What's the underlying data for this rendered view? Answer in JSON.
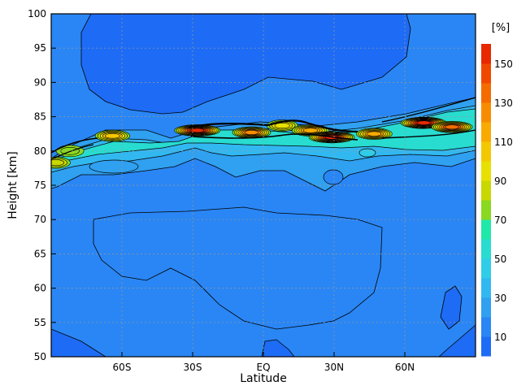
{
  "chart_data": {
    "type": "heatmap",
    "xlabel": "Latitude",
    "ylabel": "Height [km]",
    "xlim": [
      -90,
      90
    ],
    "ylim": [
      50,
      100
    ],
    "x_ticks": [
      {
        "value": -60,
        "label": "60S"
      },
      {
        "value": -30,
        "label": "30S"
      },
      {
        "value": 0,
        "label": "EQ"
      },
      {
        "value": 30,
        "label": "30N"
      },
      {
        "value": 60,
        "label": "60N"
      }
    ],
    "y_ticks": [
      50,
      55,
      60,
      65,
      70,
      75,
      80,
      85,
      90,
      95,
      100
    ],
    "grid": true,
    "colorbar": {
      "unit_label": "[%]",
      "levels": [
        0,
        10,
        20,
        30,
        40,
        50,
        60,
        70,
        80,
        90,
        100,
        110,
        120,
        130,
        140,
        150,
        160
      ],
      "tick_labels": [
        10,
        30,
        50,
        70,
        90,
        110,
        130,
        150
      ],
      "colors": [
        "#1e6cf5",
        "#2a86f4",
        "#30a0f0",
        "#32b8f0",
        "#30cde8",
        "#28dcd0",
        "#20e8a8",
        "#8ad820",
        "#c8d800",
        "#e8e000",
        "#f4c800",
        "#f8aa00",
        "#f88c00",
        "#f46c00",
        "#f04800",
        "#e82800"
      ]
    },
    "features": [
      {
        "lat": -64,
        "height": 82.2,
        "value": 105
      },
      {
        "lat": -82,
        "height": 80.0,
        "value": 75
      },
      {
        "lat": -88,
        "height": 78.3,
        "value": 80
      },
      {
        "lat": -28,
        "height": 83.0,
        "value": 150
      },
      {
        "lat": -5,
        "height": 82.7,
        "value": 120
      },
      {
        "lat": 8,
        "height": 83.7,
        "value": 90
      },
      {
        "lat": 20,
        "height": 83.0,
        "value": 115
      },
      {
        "lat": 29,
        "height": 82.0,
        "value": 150
      },
      {
        "lat": 47,
        "height": 82.5,
        "value": 110
      },
      {
        "lat": 68,
        "height": 84.1,
        "value": 150
      },
      {
        "lat": 80,
        "height": 83.5,
        "value": 130
      }
    ]
  }
}
